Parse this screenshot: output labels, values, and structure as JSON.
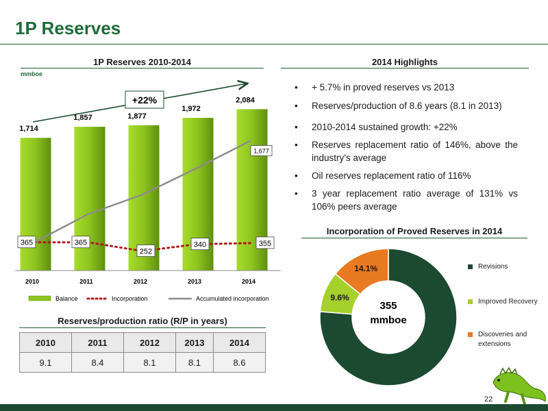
{
  "page": {
    "title": "1P Reserves",
    "page_number": "22"
  },
  "bar_chart": {
    "section_title": "1P Reserves 2010-2014",
    "unit": "mmboe",
    "growth_label": "+22%",
    "legend": {
      "balance": "Balance",
      "incorporation": "Incorporation",
      "accumulated": "Accumulated incorporation"
    }
  },
  "highlights": {
    "title": "2014 Highlights",
    "items": [
      "+ 5.7% in proved reserves vs 2013",
      "Reserves/production of 8.6 years (8.1 in 2013)",
      "2010-2014 sustained growth: +22%",
      "Reserves replacement ratio of 146%, above the industry's average",
      "Oil reserves replacement ratio of 116%",
      "3 year replacement ratio average of 131% vs 106% peers average"
    ]
  },
  "rp_table": {
    "title": "Reserves/production ratio (R/P in years)",
    "headers": [
      "2010",
      "2011",
      "2012",
      "2013",
      "2014"
    ],
    "values": [
      "9.1",
      "8.4",
      "8.1",
      "8.1",
      "8.6"
    ]
  },
  "pie": {
    "title": "Incorporation of Proved Reserves in 2014",
    "center_value": "355",
    "center_unit": "mmboe"
  },
  "colors": {
    "bar_green": "#8cc31e",
    "dark_green": "#1b4a30",
    "incorporation_red": "#b01717",
    "accumulated_gray": "#8c8c8c",
    "improved_green": "#a6d02a",
    "discoveries_orange": "#e87a22"
  },
  "chart_data": [
    {
      "type": "bar",
      "title": "1P Reserves 2010-2014",
      "ylabel": "mmboe",
      "categories": [
        "2010",
        "2011",
        "2012",
        "2013",
        "2014"
      ],
      "ylim": [
        0,
        2300
      ],
      "grid": false,
      "legend_position": "bottom",
      "series": [
        {
          "name": "Balance",
          "kind": "bar",
          "values": [
            1714,
            1857,
            1877,
            1972,
            2084
          ],
          "labels": [
            "1,714",
            "1,857",
            "1,877",
            "1,972",
            "2,084"
          ]
        },
        {
          "name": "Incorporation",
          "kind": "line",
          "values": [
            365,
            365,
            252,
            340,
            355
          ]
        },
        {
          "name": "Accumulated incorporation",
          "kind": "line",
          "values": [
            365,
            730,
            982,
            1322,
            1677
          ],
          "labels": [
            "",
            "",
            "",
            "",
            "1,677"
          ]
        }
      ]
    },
    {
      "type": "pie",
      "title": "Incorporation of Proved Reserves in 2014",
      "donut": true,
      "legend_position": "right",
      "slices": [
        {
          "name": "Revisions",
          "value": 76.3,
          "label": "76.3%",
          "color": "#1b4a30"
        },
        {
          "name": "Improved Recovery",
          "value": 9.6,
          "label": "9.6%",
          "color": "#a6d02a"
        },
        {
          "name": "Discoveries and extensions",
          "value": 14.1,
          "label": "14.1%",
          "color": "#e87a22"
        }
      ]
    }
  ]
}
